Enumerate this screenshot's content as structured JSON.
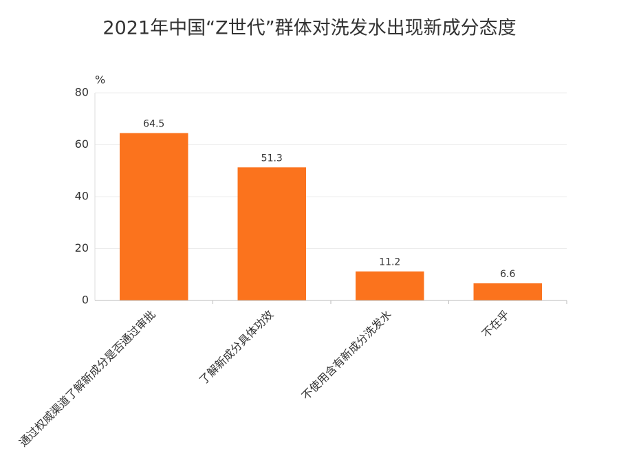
{
  "chart_data": {
    "type": "bar",
    "title": "2021年中国“Z世代”群体对洗发水出现新成分态度",
    "y_unit": "%",
    "categories": [
      "通过权威渠道了解新成分是否通过审批",
      "了解新成分具体功效",
      "不使用含有新成分洗发水",
      "不在乎"
    ],
    "values": [
      64.5,
      51.3,
      11.2,
      6.6
    ],
    "color": "#fb731d",
    "ylim": [
      0,
      80
    ],
    "yticks": [
      0,
      20,
      40,
      60,
      80
    ],
    "grid": true
  }
}
